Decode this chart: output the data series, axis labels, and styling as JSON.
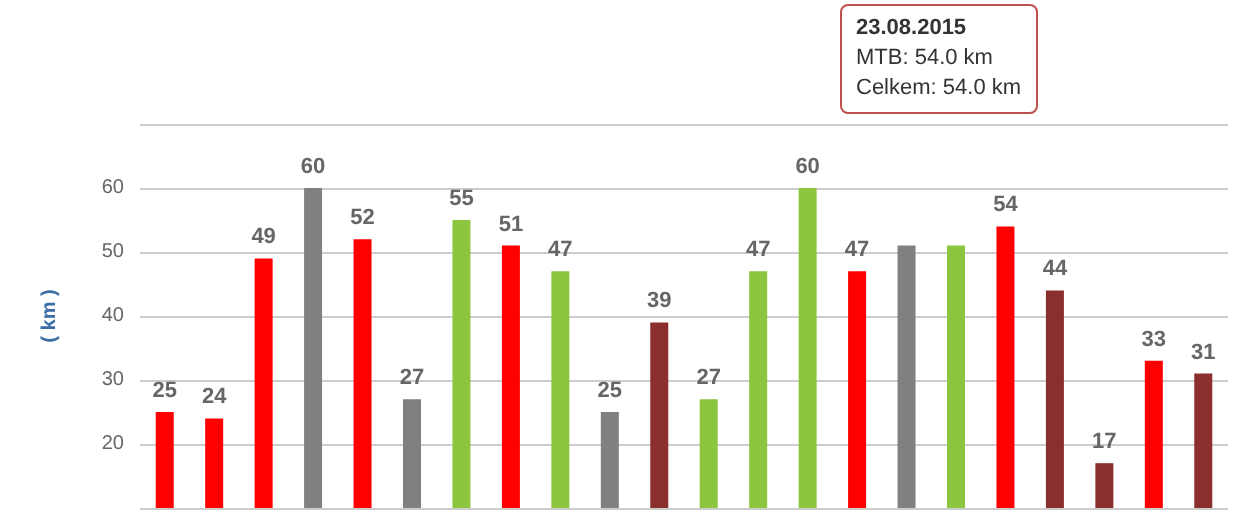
{
  "chart_data": {
    "type": "bar",
    "ylabel": "( km )",
    "categories": [
      null,
      null,
      null,
      null,
      null,
      null,
      null,
      null,
      null,
      null,
      null,
      null,
      null,
      null,
      null,
      null,
      null,
      null,
      null,
      null,
      null,
      null
    ],
    "values": [
      25,
      24,
      49,
      60,
      52,
      27,
      55,
      51,
      47,
      25,
      39,
      27,
      47,
      60,
      47,
      51,
      51,
      54,
      44,
      17,
      33,
      31
    ],
    "colors": [
      "#ff0000",
      "#ff0000",
      "#ff0000",
      "#808080",
      "#ff0000",
      "#808080",
      "#8cc63f",
      "#ff0000",
      "#8cc63f",
      "#808080",
      "#8b2e2e",
      "#8cc63f",
      "#8cc63f",
      "#8cc63f",
      "#ff0000",
      "#808080",
      "#8cc63f",
      "#ff0000",
      "#8b2e2e",
      "#8b2e2e",
      "#ff0000",
      "#8b2e2e"
    ],
    "value_labels": [
      "25",
      "24",
      "49",
      "60",
      "52",
      "27",
      "55",
      "51",
      "47",
      "25",
      "39",
      "27",
      "47",
      "60",
      "47",
      null,
      null,
      "54",
      "44",
      "17",
      "33",
      "31"
    ],
    "ylim": [
      10,
      70
    ],
    "yticks": [
      {
        "value": 10,
        "label": null
      },
      20,
      30,
      40,
      50,
      60,
      {
        "value": 70,
        "label": null
      }
    ],
    "grid": "y",
    "annotations": [
      "23.08.2015",
      "MTB: 54.0 km",
      "Celkem: 54.0 km"
    ]
  }
}
